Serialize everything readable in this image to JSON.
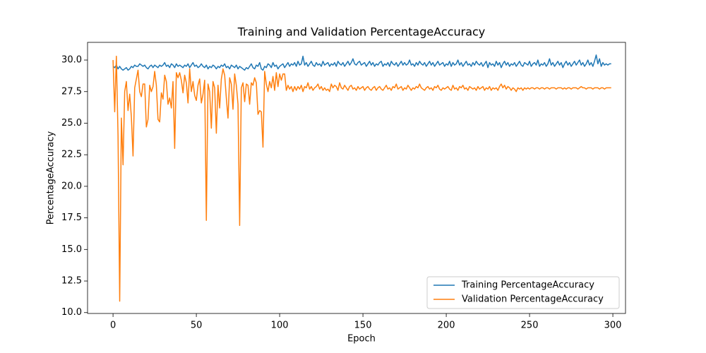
{
  "chart_data": {
    "type": "line",
    "title": "Training and Validation PercentageAccuracy",
    "x_label": "Epoch",
    "y_label": "PercentageAccuracy",
    "legend": "lower right",
    "xlim": [
      -15.3,
      307.6
    ],
    "ylim": [
      9.93,
      31.4
    ],
    "xticks": [
      0,
      50,
      100,
      150,
      200,
      250,
      300
    ],
    "yticks": [
      {
        "value": 10,
        "label": "10.0"
      },
      {
        "value": 12.5,
        "label": "12.5"
      },
      {
        "value": 15,
        "label": "15.0"
      },
      {
        "value": 17.5,
        "label": "17.5"
      },
      {
        "value": 20,
        "label": "20.0"
      },
      {
        "value": 22.5,
        "label": "22.5"
      },
      {
        "value": 25,
        "label": "25.0"
      },
      {
        "value": 27.5,
        "label": "27.5"
      },
      {
        "value": 30,
        "label": "30.0"
      }
    ],
    "x": [
      0,
      1,
      2,
      3,
      4,
      5,
      6,
      7,
      8,
      9,
      10,
      11,
      12,
      13,
      14,
      15,
      16,
      17,
      18,
      19,
      20,
      21,
      22,
      23,
      24,
      25,
      26,
      27,
      28,
      29,
      30,
      31,
      32,
      33,
      34,
      35,
      36,
      37,
      38,
      39,
      40,
      41,
      42,
      43,
      44,
      45,
      46,
      47,
      48,
      49,
      50,
      51,
      52,
      53,
      54,
      55,
      56,
      57,
      58,
      59,
      60,
      61,
      62,
      63,
      64,
      65,
      66,
      67,
      68,
      69,
      70,
      71,
      72,
      73,
      74,
      75,
      76,
      77,
      78,
      79,
      80,
      81,
      82,
      83,
      84,
      85,
      86,
      87,
      88,
      89,
      90,
      91,
      92,
      93,
      94,
      95,
      96,
      97,
      98,
      99,
      100,
      101,
      102,
      103,
      104,
      105,
      106,
      107,
      108,
      109,
      110,
      111,
      112,
      113,
      114,
      115,
      116,
      117,
      118,
      119,
      120,
      121,
      122,
      123,
      124,
      125,
      126,
      127,
      128,
      129,
      130,
      131,
      132,
      133,
      134,
      135,
      136,
      137,
      138,
      139,
      140,
      141,
      142,
      143,
      144,
      145,
      146,
      147,
      148,
      149,
      150,
      151,
      152,
      153,
      154,
      155,
      156,
      157,
      158,
      159,
      160,
      161,
      162,
      163,
      164,
      165,
      166,
      167,
      168,
      169,
      170,
      171,
      172,
      173,
      174,
      175,
      176,
      177,
      178,
      179,
      180,
      181,
      182,
      183,
      184,
      185,
      186,
      187,
      188,
      189,
      190,
      191,
      192,
      193,
      194,
      195,
      196,
      197,
      198,
      199,
      200,
      201,
      202,
      203,
      204,
      205,
      206,
      207,
      208,
      209,
      210,
      211,
      212,
      213,
      214,
      215,
      216,
      217,
      218,
      219,
      220,
      221,
      222,
      223,
      224,
      225,
      226,
      227,
      228,
      229,
      230,
      231,
      232,
      233,
      234,
      235,
      236,
      237,
      238,
      239,
      240,
      241,
      242,
      243,
      244,
      245,
      246,
      247,
      248,
      249,
      250,
      251,
      252,
      253,
      254,
      255,
      256,
      257,
      258,
      259,
      260,
      261,
      262,
      263,
      264,
      265,
      266,
      267,
      268,
      269,
      270,
      271,
      272,
      273,
      274,
      275,
      276,
      277,
      278,
      279,
      280,
      281,
      282,
      283,
      284,
      285,
      286,
      287,
      288,
      289,
      290,
      291,
      292,
      293,
      294,
      295,
      296,
      297,
      298,
      299
    ],
    "series": [
      {
        "name": "Training PercentageAccuracy",
        "color": "#1f77b4",
        "values": [
          29.5,
          29.4,
          29.6,
          29.3,
          29.5,
          29.3,
          29.2,
          29.3,
          29.4,
          29.2,
          29.3,
          29.5,
          29.4,
          29.6,
          29.5,
          29.5,
          29.7,
          29.6,
          29.5,
          29.6,
          29.4,
          29.3,
          29.5,
          29.6,
          29.4,
          29.6,
          29.5,
          29.4,
          29.6,
          29.5,
          29.6,
          29.8,
          29.5,
          29.6,
          29.4,
          29.7,
          29.6,
          29.4,
          29.7,
          29.5,
          29.6,
          29.5,
          29.4,
          29.6,
          29.5,
          29.7,
          29.4,
          29.6,
          29.8,
          29.5,
          29.6,
          29.4,
          29.5,
          29.7,
          29.5,
          29.4,
          29.6,
          29.3,
          29.5,
          29.4,
          29.6,
          29.5,
          29.3,
          29.5,
          29.4,
          29.6,
          29.5,
          29.7,
          29.4,
          29.5,
          29.3,
          29.6,
          29.5,
          29.4,
          29.6,
          29.3,
          29.5,
          29.4,
          29.3,
          29.2,
          29.4,
          29.3,
          29.5,
          29.7,
          29.4,
          29.3,
          29.6,
          29.5,
          29.8,
          29.3,
          29.2,
          29.5,
          29.4,
          29.7,
          29.6,
          29.4,
          29.8,
          29.5,
          29.6,
          29.3,
          29.5,
          29.6,
          29.7,
          29.4,
          29.6,
          29.8,
          29.5,
          29.7,
          29.6,
          29.8,
          29.5,
          29.9,
          29.6,
          29.7,
          30.3,
          29.6,
          29.8,
          29.5,
          29.7,
          29.9,
          29.6,
          29.5,
          29.8,
          29.6,
          29.7,
          29.5,
          29.9,
          29.6,
          29.7,
          29.8,
          29.5,
          29.7,
          29.6,
          29.8,
          29.5,
          29.9,
          29.7,
          29.6,
          29.8,
          29.5,
          29.7,
          29.9,
          29.6,
          29.8,
          30.1,
          29.7,
          29.6,
          29.8,
          29.9,
          29.6,
          29.7,
          29.8,
          29.5,
          29.7,
          29.9,
          29.6,
          29.8,
          29.5,
          29.7,
          29.6,
          29.8,
          29.9,
          29.5,
          29.7,
          29.6,
          29.8,
          29.5,
          29.9,
          29.7,
          29.6,
          29.8,
          29.5,
          29.7,
          29.9,
          29.6,
          29.8,
          29.6,
          29.7,
          30.0,
          29.6,
          29.7,
          29.5,
          29.8,
          29.6,
          29.9,
          29.7,
          29.6,
          29.8,
          29.5,
          29.7,
          29.9,
          29.6,
          29.8,
          29.5,
          29.7,
          29.9,
          29.6,
          29.7,
          29.8,
          29.5,
          29.7,
          29.6,
          29.9,
          29.5,
          29.8,
          29.6,
          29.7,
          30.0,
          29.6,
          29.8,
          29.5,
          29.7,
          29.9,
          29.6,
          29.7,
          29.5,
          29.8,
          29.6,
          29.9,
          29.7,
          29.6,
          29.8,
          29.5,
          29.7,
          29.9,
          29.4,
          29.8,
          29.6,
          29.7,
          29.5,
          29.9,
          29.6,
          29.8,
          29.4,
          29.7,
          29.9,
          29.6,
          29.8,
          29.5,
          29.7,
          29.6,
          29.8,
          29.5,
          29.7,
          29.9,
          29.6,
          29.5,
          29.8,
          29.7,
          29.6,
          29.9,
          29.5,
          29.7,
          29.8,
          29.6,
          30.0,
          29.5,
          29.7,
          29.6,
          29.8,
          29.5,
          29.7,
          30.1,
          29.6,
          29.8,
          29.5,
          29.7,
          29.9,
          29.6,
          29.8,
          29.4,
          29.7,
          29.9,
          29.6,
          29.8,
          29.5,
          29.7,
          29.9,
          29.6,
          29.8,
          30.0,
          29.6,
          29.8,
          29.5,
          29.7,
          30.0,
          29.6,
          29.8,
          29.5,
          29.9,
          30.4,
          29.7,
          30.1,
          29.5,
          29.8,
          29.6,
          29.7,
          29.6,
          29.7,
          29.7
        ]
      },
      {
        "name": "Validation PercentageAccuracy",
        "color": "#ff7f0e",
        "values": [
          30.0,
          25.9,
          30.3,
          24.0,
          10.9,
          25.4,
          21.7,
          27.5,
          28.3,
          26.0,
          27.3,
          25.5,
          22.4,
          27.8,
          28.5,
          29.2,
          27.5,
          27.1,
          28.1,
          28.1,
          24.7,
          25.3,
          28.0,
          27.5,
          27.9,
          29.1,
          28.0,
          25.3,
          25.1,
          27.4,
          26.9,
          28.8,
          28.3,
          26.5,
          27.0,
          26.2,
          28.3,
          23.0,
          29.0,
          28.6,
          29.0,
          28.4,
          27.4,
          28.8,
          28.2,
          26.6,
          29.3,
          27.5,
          28.3,
          27.2,
          26.8,
          28.0,
          28.5,
          26.6,
          27.3,
          28.4,
          17.3,
          28.1,
          27.5,
          24.6,
          28.3,
          27.8,
          24.2,
          28.0,
          26.2,
          28.5,
          29.3,
          28.8,
          27.0,
          25.4,
          28.6,
          28.1,
          26.1,
          28.9,
          28.0,
          26.5,
          16.9,
          27.8,
          28.2,
          26.7,
          28.1,
          28.0,
          26.5,
          28.2,
          28.0,
          28.6,
          28.2,
          25.7,
          26.0,
          25.9,
          23.1,
          29.1,
          28.1,
          27.5,
          28.3,
          27.8,
          28.7,
          27.6,
          29.0,
          27.9,
          28.9,
          28.4,
          28.9,
          28.9,
          27.6,
          28.0,
          27.7,
          27.9,
          27.5,
          27.9,
          27.6,
          27.9,
          27.7,
          28.0,
          27.5,
          27.9,
          27.8,
          28.2,
          27.7,
          27.9,
          27.6,
          27.8,
          27.9,
          28.1,
          27.7,
          27.9,
          27.6,
          27.8,
          27.6,
          27.7,
          27.5,
          28.1,
          27.8,
          28.0,
          27.9,
          27.6,
          28.2,
          27.8,
          27.7,
          28.0,
          27.8,
          27.6,
          27.9,
          28.0,
          27.7,
          27.8,
          27.6,
          27.9,
          27.7,
          27.8,
          27.9,
          27.6,
          27.8,
          27.9,
          27.7,
          27.6,
          27.8,
          27.9,
          27.6,
          27.8,
          27.9,
          27.7,
          27.6,
          27.8,
          28.0,
          27.7,
          27.8,
          27.6,
          27.9,
          27.8,
          28.1,
          27.7,
          27.8,
          27.9,
          27.6,
          27.8,
          27.7,
          28.0,
          27.8,
          27.6,
          27.8,
          27.7,
          27.9,
          27.8,
          28.1,
          27.8,
          27.7,
          27.6,
          27.8,
          27.9,
          27.7,
          27.8,
          27.6,
          27.9,
          27.8,
          28.0,
          27.7,
          27.6,
          27.8,
          27.7,
          27.8,
          27.9,
          27.7,
          27.6,
          28.0,
          27.7,
          27.8,
          27.6,
          27.9,
          27.8,
          28.0,
          27.7,
          27.8,
          27.6,
          27.9,
          27.8,
          27.7,
          27.8,
          27.6,
          27.9,
          27.7,
          27.8,
          27.9,
          27.6,
          27.8,
          27.7,
          27.9,
          27.6,
          27.8,
          27.7,
          27.8,
          27.6,
          27.9,
          28.1,
          27.8,
          28.0,
          27.7,
          27.9,
          27.8,
          27.6,
          27.8,
          27.7,
          27.5,
          27.8,
          27.7,
          27.8,
          27.6,
          27.8,
          27.7,
          27.8,
          27.7,
          27.8,
          27.8,
          27.7,
          27.8,
          27.8,
          27.7,
          27.8,
          27.8,
          27.7,
          27.8,
          27.8,
          27.7,
          27.8,
          27.8,
          27.8,
          27.7,
          27.8,
          27.8,
          27.8,
          27.7,
          27.8,
          27.7,
          27.8,
          27.8,
          27.7,
          27.8,
          27.8,
          27.8,
          27.7,
          27.8,
          27.9,
          27.8,
          27.8,
          27.7,
          27.8,
          27.8,
          27.8,
          27.7,
          27.8,
          27.8,
          27.8,
          27.7,
          27.8,
          27.8,
          27.7,
          27.8,
          27.8,
          27.8,
          27.8
        ]
      }
    ]
  }
}
